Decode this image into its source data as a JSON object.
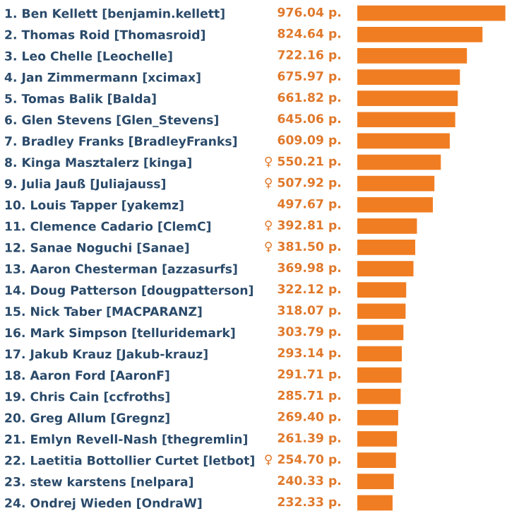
{
  "chart_data": {
    "type": "bar",
    "orientation": "horizontal",
    "color": "#f07d22",
    "xlim": [
      0,
      976.04
    ],
    "tick_labels": "y",
    "grid": false,
    "categories": [
      "1. Ben Kellett [benjamin.kellett]",
      "2. Thomas Roid [Thomasroid]",
      "3. Leo Chelle [Leochelle]",
      "4. Jan Zimmermann [xcimax]",
      "5. Tomas Balik [Balda]",
      "6. Glen Stevens [Glen_Stevens]",
      "7. Bradley Franks [BradleyFranks]",
      "8. Kinga Masztalerz [kinga]",
      "9. Julia Jauß [Juliajauss]",
      "10. Louis Tapper [yakemz]",
      "11. Clemence Cadario [ClemC]",
      "12. Sanae Noguchi [Sanae]",
      "13. Aaron Chesterman [azzasurfs]",
      "14. Doug Patterson [dougpatterson]",
      "15. Nick Taber [MACPARANZ]",
      "16. Mark Simpson [telluridemark]",
      "17. Jakub Krauz [Jakub-krauz]",
      "18. Aaron Ford [AaronF]",
      "19. Chris Cain [ccfroths]",
      "20. Greg Allum [Gregnz]",
      "21. Emlyn Revell-Nash [thegremlin]",
      "22. Laetitia Bottollier Curtet [letbot]",
      "23. stew karstens [nelpara]",
      "24. Ondrej Wieden [OndraW]"
    ],
    "values": [
      976.04,
      824.64,
      722.16,
      675.97,
      661.82,
      645.06,
      609.09,
      550.21,
      507.92,
      497.67,
      392.81,
      381.5,
      369.98,
      322.12,
      318.07,
      303.79,
      293.14,
      291.71,
      285.71,
      269.4,
      261.39,
      254.7,
      240.33,
      232.33
    ],
    "value_labels": [
      "976.04 p.",
      "824.64 p.",
      "722.16 p.",
      "675.97 p.",
      "661.82 p.",
      "645.06 p.",
      "609.09 p.",
      "♀ 550.21 p.",
      "♀ 507.92 p.",
      "497.67 p.",
      "♀ 392.81 p.",
      "♀ 381.50 p.",
      "369.98 p.",
      "322.12 p.",
      "318.07 p.",
      "303.79 p.",
      "293.14 p.",
      "291.71 p.",
      "285.71 p.",
      "269.40 p.",
      "261.39 p.",
      "♀ 254.70 p.",
      "240.33 p.",
      "232.33 p."
    ]
  }
}
